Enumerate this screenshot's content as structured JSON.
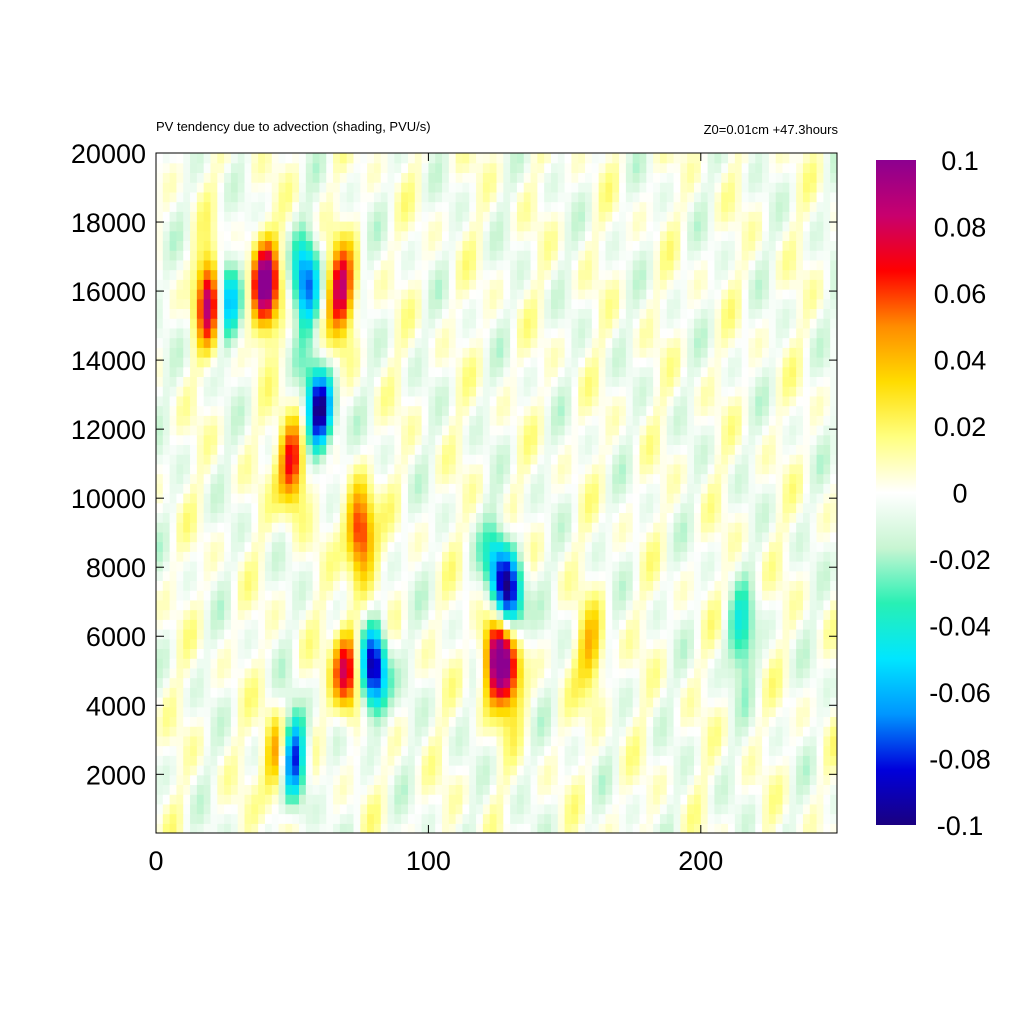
{
  "chart_data": {
    "type": "heatmap",
    "title": "PV tendency due to advection (shading, PVU/s)",
    "subtitle": "Z0=0.01cm   +47.3hours",
    "xlabel": "",
    "ylabel": "",
    "xlim": [
      0,
      250
    ],
    "ylim": [
      300,
      20000
    ],
    "x_ticks": [
      "0",
      "100",
      "200"
    ],
    "y_ticks": [
      "2000",
      "4000",
      "6000",
      "8000",
      "10000",
      "12000",
      "14000",
      "16000",
      "18000",
      "20000"
    ],
    "colorbar": {
      "range": [
        -0.1,
        0.1
      ],
      "ticks": [
        "0.1",
        "0.08",
        "0.06",
        "0.04",
        "0.02",
        "0",
        "-0.02",
        "-0.04",
        "-0.06",
        "-0.08",
        "-0.1"
      ],
      "colors": [
        "#1a0080",
        "#0000dc",
        "#0096ff",
        "#00e6ff",
        "#28f0b4",
        "#c8f5d2",
        "#ffffff",
        "#ffff80",
        "#ffdc00",
        "#ff8c00",
        "#ff0000",
        "#c8006e",
        "#8c0090"
      ]
    },
    "grid": false,
    "features": [
      {
        "x": 20,
        "y": 15800,
        "value": 0.1
      },
      {
        "x": 25,
        "y": 15800,
        "value": -0.07
      },
      {
        "x": 40,
        "y": 16200,
        "value": 0.1
      },
      {
        "x": 55,
        "y": 16200,
        "value": -0.07
      },
      {
        "x": 68,
        "y": 16000,
        "value": 0.08
      },
      {
        "x": 60,
        "y": 12500,
        "value": -0.1
      },
      {
        "x": 50,
        "y": 11000,
        "value": 0.08
      },
      {
        "x": 75,
        "y": 9000,
        "value": 0.08
      },
      {
        "x": 80,
        "y": 5000,
        "value": -0.1
      },
      {
        "x": 70,
        "y": 5000,
        "value": 0.08
      },
      {
        "x": 50,
        "y": 2500,
        "value": -0.1
      },
      {
        "x": 45,
        "y": 2500,
        "value": 0.07
      },
      {
        "x": 125,
        "y": 5500,
        "value": 0.1
      },
      {
        "x": 130,
        "y": 5000,
        "value": 0.06
      },
      {
        "x": 130,
        "y": 7000,
        "value": -0.09
      },
      {
        "x": 125,
        "y": 8000,
        "value": -0.05
      },
      {
        "x": 160,
        "y": 5500,
        "value": 0.04
      },
      {
        "x": 215,
        "y": 6000,
        "value": -0.04
      }
    ]
  }
}
